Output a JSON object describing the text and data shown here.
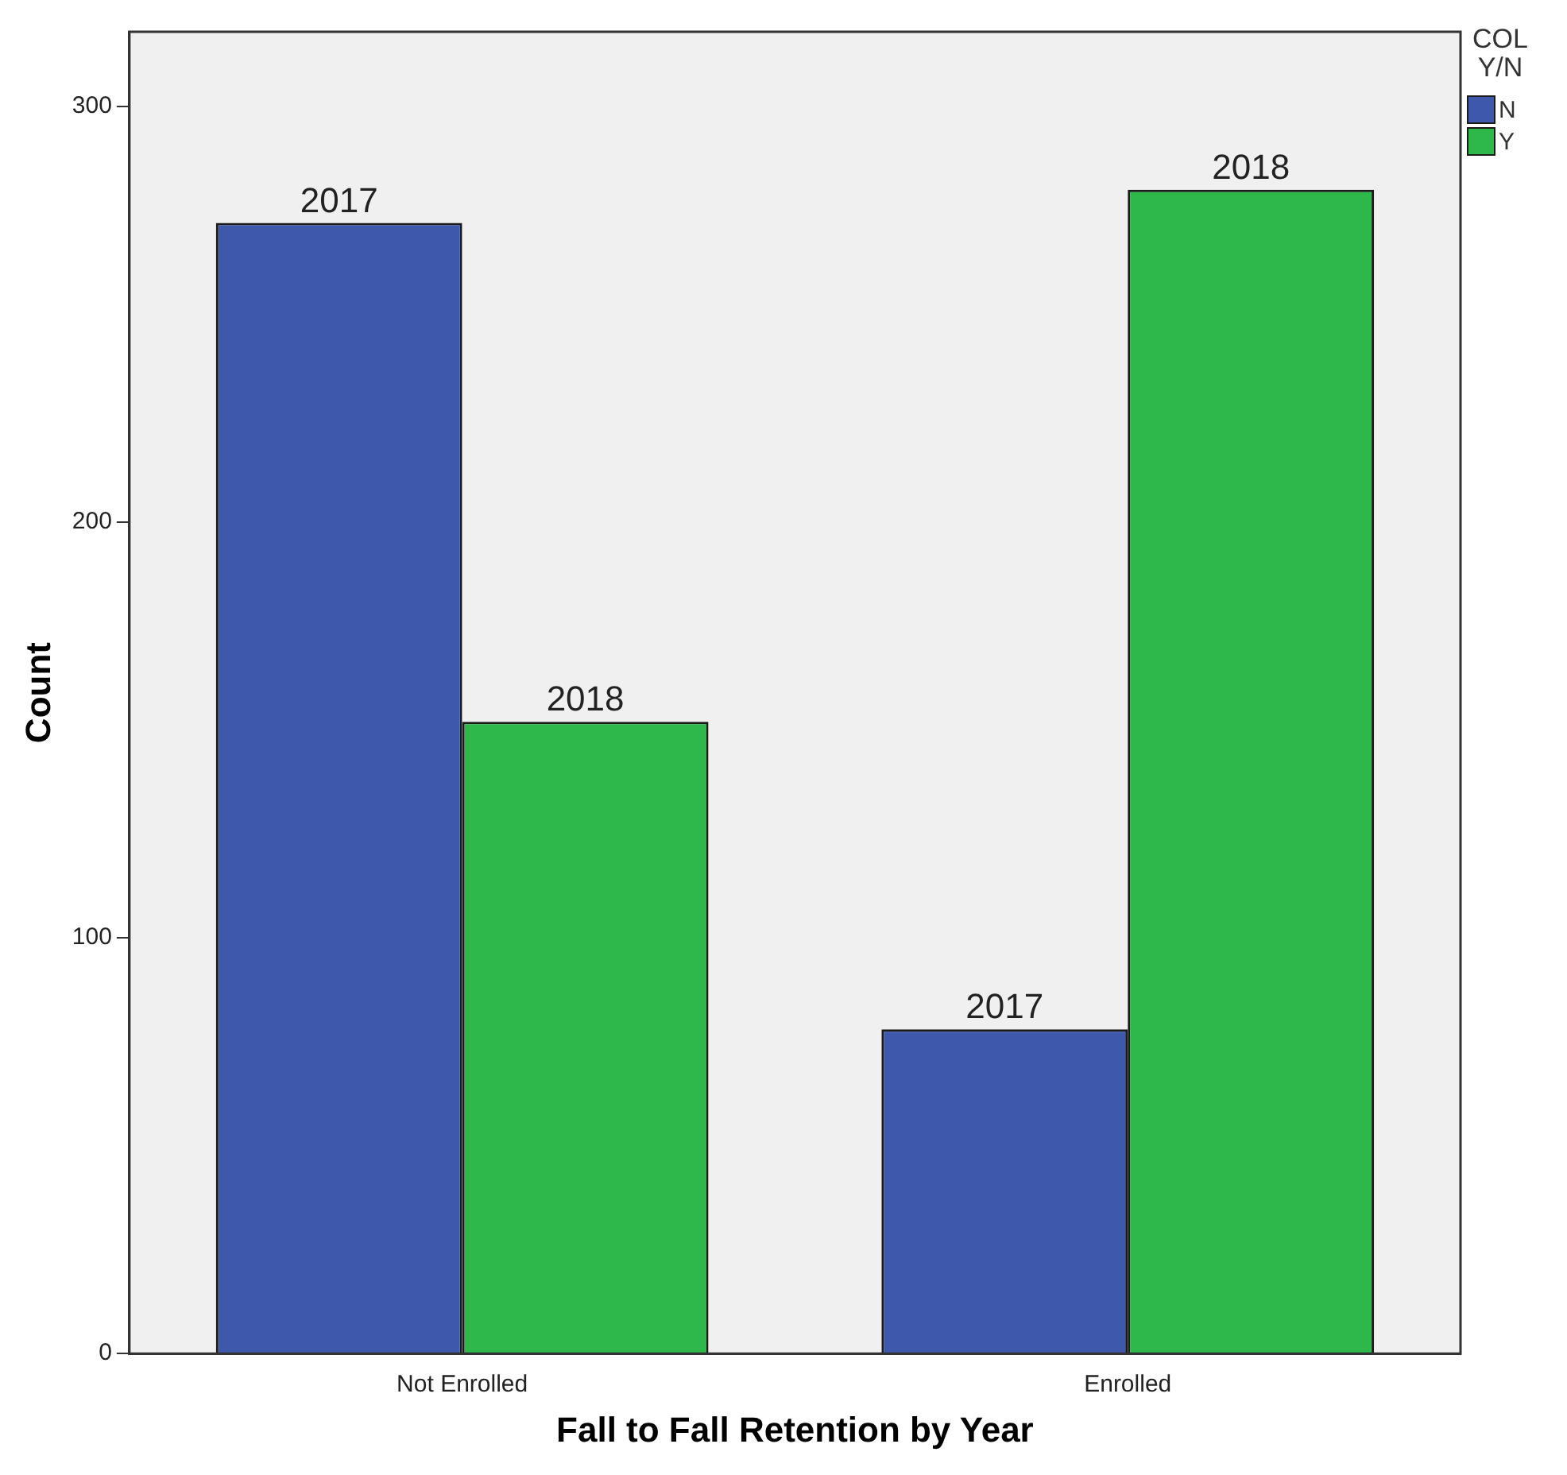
{
  "chart_data": {
    "type": "bar",
    "xlabel": "Fall to Fall Retention by Year",
    "ylabel": "Count",
    "legend_title": "COL Y/N",
    "categories": [
      "Not Enrolled",
      "Enrolled"
    ],
    "series": [
      {
        "name": "N",
        "color": "#3e58ac",
        "values": [
          272,
          78
        ]
      },
      {
        "name": "Y",
        "color": "#2eb84a",
        "values": [
          152,
          280
        ]
      }
    ],
    "annotations": [
      {
        "text": "2017",
        "x": "Not Enrolled",
        "y": 272
      },
      {
        "text": "2018",
        "x": "Not Enrolled",
        "y": 152
      },
      {
        "text": "2017",
        "x": "Enrolled",
        "y": 78
      },
      {
        "text": "2018",
        "x": "Enrolled",
        "y": 280
      }
    ],
    "ylim": [
      0,
      318
    ],
    "yticks": [
      0,
      100,
      200,
      300
    ],
    "grid": false,
    "legend": "top right"
  }
}
